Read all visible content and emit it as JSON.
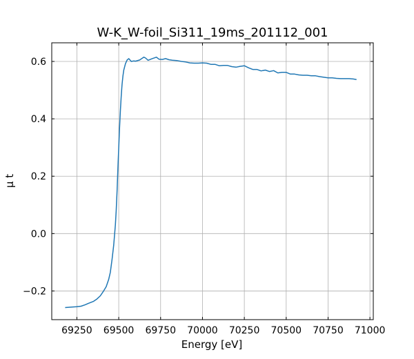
{
  "chart_data": {
    "type": "line",
    "title": "W-K_W-foil_Si311_19ms_201112_001",
    "xlabel": "Energy [eV]",
    "ylabel": "μ t",
    "xlim": [
      69100,
      71020
    ],
    "ylim": [
      -0.3,
      0.665
    ],
    "xticks": [
      69250,
      69500,
      69750,
      70000,
      70250,
      70500,
      70750,
      71000
    ],
    "xtick_labels": [
      "69250",
      "69500",
      "69750",
      "70000",
      "70250",
      "70500",
      "70750",
      "71000"
    ],
    "yticks": [
      -0.2,
      0.0,
      0.2,
      0.4,
      0.6
    ],
    "ytick_labels": [
      "−0.2",
      "0.0",
      "0.2",
      "0.4",
      "0.6"
    ],
    "grid": true,
    "color": "#1f77b4",
    "series": [
      {
        "x": [
          69180,
          69200,
          69220,
          69250,
          69275,
          69300,
          69320,
          69350,
          69370,
          69390,
          69410,
          69425,
          69440,
          69450,
          69460,
          69470,
          69480,
          69485,
          69490,
          69495,
          69500,
          69505,
          69510,
          69515,
          69520,
          69525,
          69530,
          69540,
          69550,
          69560,
          69575,
          69590,
          69600,
          69625,
          69650,
          69660,
          69675,
          69700,
          69725,
          69740,
          69760,
          69780,
          69800,
          69820,
          69850,
          69875,
          69900,
          69925,
          69950,
          69975,
          70000,
          70025,
          70050,
          70075,
          70100,
          70125,
          70150,
          70175,
          70200,
          70225,
          70250,
          70275,
          70300,
          70325,
          70350,
          70375,
          70400,
          70425,
          70450,
          70475,
          70500,
          70525,
          70550,
          70575,
          70600,
          70625,
          70650,
          70675,
          70700,
          70725,
          70750,
          70775,
          70800,
          70825,
          70850,
          70875,
          70900,
          70920
        ],
        "y": [
          -0.258,
          -0.257,
          -0.256,
          -0.255,
          -0.253,
          -0.248,
          -0.243,
          -0.236,
          -0.228,
          -0.217,
          -0.2,
          -0.185,
          -0.16,
          -0.135,
          -0.09,
          -0.04,
          0.03,
          0.08,
          0.15,
          0.23,
          0.3,
          0.37,
          0.43,
          0.48,
          0.52,
          0.55,
          0.57,
          0.592,
          0.605,
          0.61,
          0.6,
          0.602,
          0.601,
          0.605,
          0.615,
          0.612,
          0.604,
          0.61,
          0.615,
          0.608,
          0.607,
          0.61,
          0.606,
          0.604,
          0.603,
          0.6,
          0.598,
          0.595,
          0.594,
          0.594,
          0.595,
          0.594,
          0.59,
          0.59,
          0.585,
          0.586,
          0.586,
          0.582,
          0.58,
          0.583,
          0.585,
          0.578,
          0.572,
          0.572,
          0.567,
          0.57,
          0.565,
          0.568,
          0.56,
          0.562,
          0.562,
          0.556,
          0.556,
          0.553,
          0.552,
          0.552,
          0.55,
          0.55,
          0.547,
          0.545,
          0.543,
          0.543,
          0.541,
          0.54,
          0.54,
          0.54,
          0.539,
          0.537
        ]
      }
    ]
  }
}
